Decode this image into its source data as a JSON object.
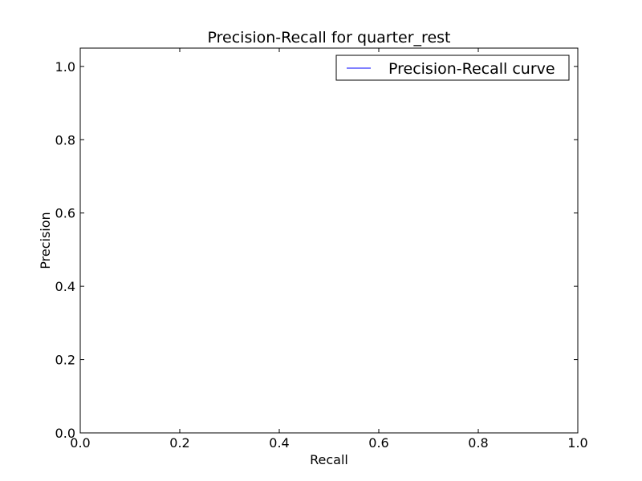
{
  "chart_data": {
    "type": "line",
    "title": "Precision-Recall for quarter_rest",
    "xlabel": "Recall",
    "ylabel": "Precision",
    "xlim": [
      0.0,
      1.0
    ],
    "ylim": [
      0.0,
      1.05
    ],
    "x_ticks": [
      "0.0",
      "0.2",
      "0.4",
      "0.6",
      "0.8",
      "1.0"
    ],
    "y_ticks": [
      "0.0",
      "0.2",
      "0.4",
      "0.6",
      "0.8",
      "1.0"
    ],
    "grid": false,
    "legend_position": "top-right",
    "series": [
      {
        "name": "Precision-Recall curve",
        "color": "#0000ff",
        "x": [],
        "y": []
      }
    ]
  }
}
